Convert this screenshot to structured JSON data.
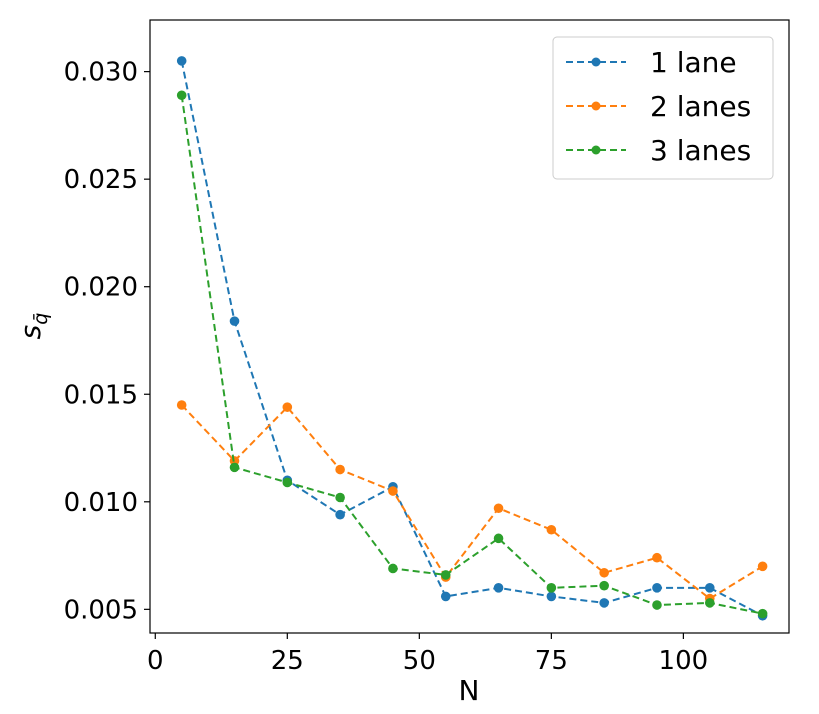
{
  "chart_data": {
    "type": "line",
    "title": "",
    "xlabel": "N",
    "ylabel_base": "s",
    "ylabel_sub": "q̄",
    "xlim": [
      -1,
      120
    ],
    "ylim": [
      0.0039,
      0.0324
    ],
    "xticks": [
      0,
      25,
      50,
      75,
      100
    ],
    "xtick_labels": [
      "0",
      "25",
      "50",
      "75",
      "100"
    ],
    "yticks": [
      0.005,
      0.01,
      0.015,
      0.02,
      0.025,
      0.03
    ],
    "ytick_labels": [
      "0.005",
      "0.010",
      "0.015",
      "0.020",
      "0.025",
      "0.030"
    ],
    "grid": false,
    "legend_position": "top-right",
    "line_style": "dashed",
    "marker": "circle",
    "x": [
      5,
      15,
      25,
      35,
      45,
      55,
      65,
      75,
      85,
      95,
      105,
      115
    ],
    "series": [
      {
        "name": "1 lane",
        "color": "#1f77b4",
        "values": [
          0.0305,
          0.0184,
          0.011,
          0.0094,
          0.0107,
          0.0056,
          0.006,
          0.0056,
          0.0053,
          0.006,
          0.006,
          0.0047
        ]
      },
      {
        "name": "2 lanes",
        "color": "#ff7f0e",
        "values": [
          0.0145,
          0.0119,
          0.0144,
          0.0115,
          0.0105,
          0.0065,
          0.0097,
          0.0087,
          0.0067,
          0.0074,
          0.0055,
          0.007
        ]
      },
      {
        "name": "3 lanes",
        "color": "#2ca02c",
        "values": [
          0.0289,
          0.0116,
          0.0109,
          0.0102,
          0.0069,
          0.0066,
          0.0083,
          0.006,
          0.0061,
          0.0052,
          0.0053,
          0.0048
        ]
      }
    ]
  }
}
